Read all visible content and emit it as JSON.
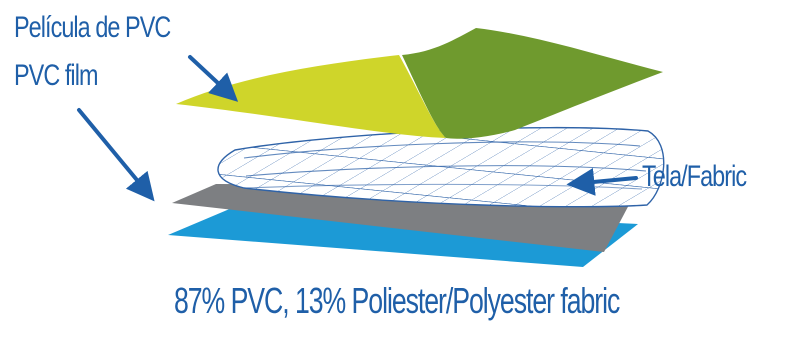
{
  "labels": {
    "pvc_film_es": "Película de PVC",
    "pvc_film_en": "PVC film",
    "fabric": "Tela/Fabric"
  },
  "caption": "87% PVC, 13% Poliester/Polyester fabric",
  "colors": {
    "label_text": "#1f5fa8",
    "film_yellow_green": "#cfd52a",
    "film_green": "#6f9a2e",
    "fabric_mesh": "#2f63a8",
    "grey_layer": "#7d7f82",
    "blue_layer": "#1c9ad6",
    "arrow": "#1f5fa8"
  }
}
